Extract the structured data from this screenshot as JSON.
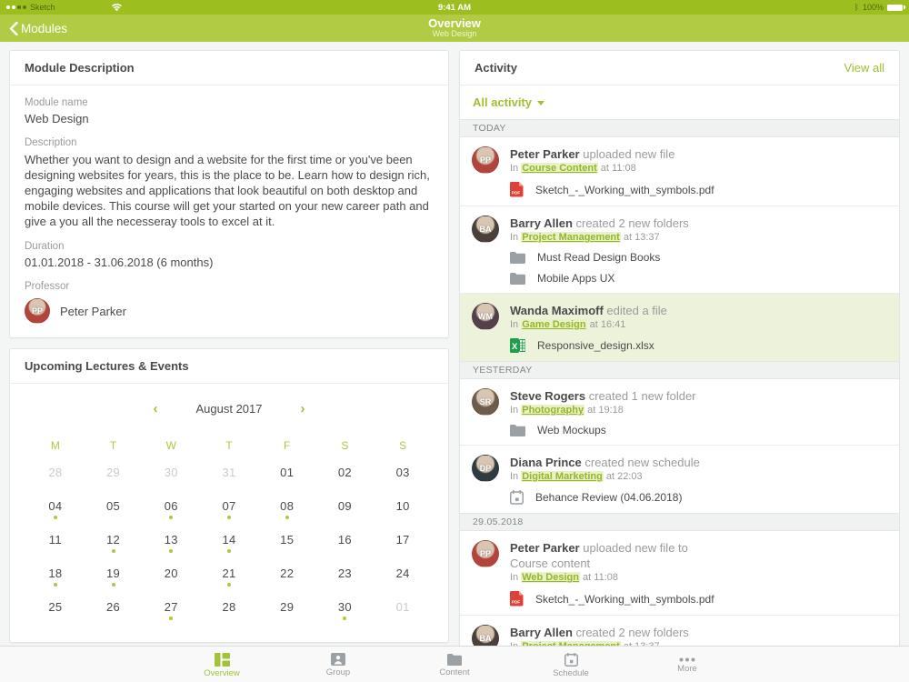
{
  "colors": {
    "accent": "#9fc131",
    "statusbar_green": "#9cbe1e",
    "navbar_green": "#b1cc44",
    "highlight_row": "#edf3da",
    "pdf_red": "#dd4236",
    "xlsx_green": "#1f9e4e",
    "icon_gray": "#9aa0a3"
  },
  "status_bar": {
    "carrier": "Sketch",
    "time": "9:41 AM",
    "battery": "100%"
  },
  "nav_bar": {
    "back_label": "Modules",
    "title": "Overview",
    "subtitle": "Web Design"
  },
  "module": {
    "header": "Module Description",
    "name_label": "Module name",
    "name": "Web Design",
    "description_label": "Description",
    "description": "Whether you want to design and a website for the first time or you've been designing websites for years, this is the place to be. Learn how to design rich, engaging websites and applications that look beautiful on both desktop and mobile devices. This course will get your started on your new career path and give a you all the necesseray tools to excel at it.",
    "duration_label": "Duration",
    "duration": "01.01.2018 - 31.06.2018 (6 months)",
    "professor_label": "Professor",
    "professor": "Peter Parker",
    "professor_avatar": {
      "initials": "PP",
      "color": "#b3443c"
    }
  },
  "calendar": {
    "header": "Upcoming Lectures & Events",
    "month": "August 2017",
    "prev": "‹",
    "next": "›",
    "weekdays": [
      "M",
      "T",
      "W",
      "T",
      "F",
      "S",
      "S"
    ],
    "weeks": [
      [
        {
          "d": "28",
          "muted": true
        },
        {
          "d": "29",
          "muted": true
        },
        {
          "d": "30",
          "muted": true
        },
        {
          "d": "31",
          "muted": true
        },
        {
          "d": "01"
        },
        {
          "d": "02"
        },
        {
          "d": "03"
        }
      ],
      [
        {
          "d": "04",
          "dot": true
        },
        {
          "d": "05"
        },
        {
          "d": "06",
          "dot": true
        },
        {
          "d": "07",
          "dot": true
        },
        {
          "d": "08",
          "dot": true
        },
        {
          "d": "09"
        },
        {
          "d": "10"
        }
      ],
      [
        {
          "d": "11"
        },
        {
          "d": "12",
          "dot": true
        },
        {
          "d": "13",
          "dot": true
        },
        {
          "d": "14",
          "dot": true
        },
        {
          "d": "15"
        },
        {
          "d": "16"
        },
        {
          "d": "17"
        }
      ],
      [
        {
          "d": "18",
          "dot": true
        },
        {
          "d": "19",
          "dot": true
        },
        {
          "d": "20"
        },
        {
          "d": "21",
          "dot": true
        },
        {
          "d": "22"
        },
        {
          "d": "23"
        },
        {
          "d": "24"
        }
      ],
      [
        {
          "d": "25"
        },
        {
          "d": "26"
        },
        {
          "d": "27",
          "dot": true
        },
        {
          "d": "28"
        },
        {
          "d": "29"
        },
        {
          "d": "30",
          "dot": true
        },
        {
          "d": "01",
          "muted": true
        }
      ]
    ]
  },
  "activity": {
    "header": "Activity",
    "view_all": "View all",
    "filter": "All activity",
    "meta_prefix": "In",
    "sections": [
      {
        "label": "TODAY",
        "items": [
          {
            "name": "Peter Parker",
            "action": "uploaded new file",
            "link": "Course Content",
            "time": "at 11:08",
            "avatar": {
              "initials": "PP",
              "color": "#b3443c"
            },
            "attachments": [
              {
                "type": "pdf",
                "label": "Sketch_-_Working_with_symbols.pdf"
              }
            ]
          },
          {
            "name": "Barry Allen",
            "action": "created 2 new folders",
            "link": "Project Management",
            "time": "at 13:37",
            "avatar": {
              "initials": "BA",
              "color": "#4a3f3a"
            },
            "attachments": [
              {
                "type": "folder",
                "label": "Must Read Design Books"
              },
              {
                "type": "folder",
                "label": "Mobile Apps UX"
              }
            ]
          },
          {
            "name": "Wanda Maximoff",
            "action": "edited a file",
            "link": "Game Design",
            "time": "at 16:41",
            "highlight": true,
            "avatar": {
              "initials": "WM",
              "color": "#54404a"
            },
            "attachments": [
              {
                "type": "xlsx",
                "label": "Responsive_design.xlsx"
              }
            ]
          }
        ]
      },
      {
        "label": "YESTERDAY",
        "items": [
          {
            "name": "Steve Rogers",
            "action": "created 1 new folder",
            "link": "Photography",
            "time": "at 19:18",
            "avatar": {
              "initials": "SR",
              "color": "#6e5b49"
            },
            "attachments": [
              {
                "type": "folder",
                "label": "Web Mockups"
              }
            ]
          },
          {
            "name": "Diana Prince",
            "action": "created new schedule",
            "link": "Digital Marketing",
            "time": "at 22:03",
            "avatar": {
              "initials": "DP",
              "color": "#2f3a41"
            },
            "attachments": [
              {
                "type": "schedule",
                "label": "Behance Review (04.06.2018)"
              }
            ]
          }
        ]
      },
      {
        "label": "29.05.2018",
        "items": [
          {
            "name": "Peter Parker",
            "action": "uploaded new file to",
            "action2": "Course content",
            "link": "Web Design",
            "time": "at 11:08",
            "avatar": {
              "initials": "PP",
              "color": "#b3443c"
            },
            "attachments": [
              {
                "type": "pdf",
                "label": "Sketch_-_Working_with_symbols.pdf"
              }
            ]
          },
          {
            "name": "Barry Allen",
            "action": "created 2 new folders",
            "link": "Project Management",
            "time": "at 13:37",
            "avatar": {
              "initials": "BA",
              "color": "#4a3f3a"
            },
            "attachments": []
          }
        ]
      }
    ]
  },
  "tab_bar": {
    "tabs": [
      {
        "label": "Overview",
        "icon": "overview-icon",
        "active": true
      },
      {
        "label": "Group",
        "icon": "group-icon",
        "active": false
      },
      {
        "label": "Content",
        "icon": "content-icon",
        "active": false
      },
      {
        "label": "Schedule",
        "icon": "schedule-icon",
        "active": false
      },
      {
        "label": "More",
        "icon": "more-icon",
        "active": false
      }
    ]
  }
}
